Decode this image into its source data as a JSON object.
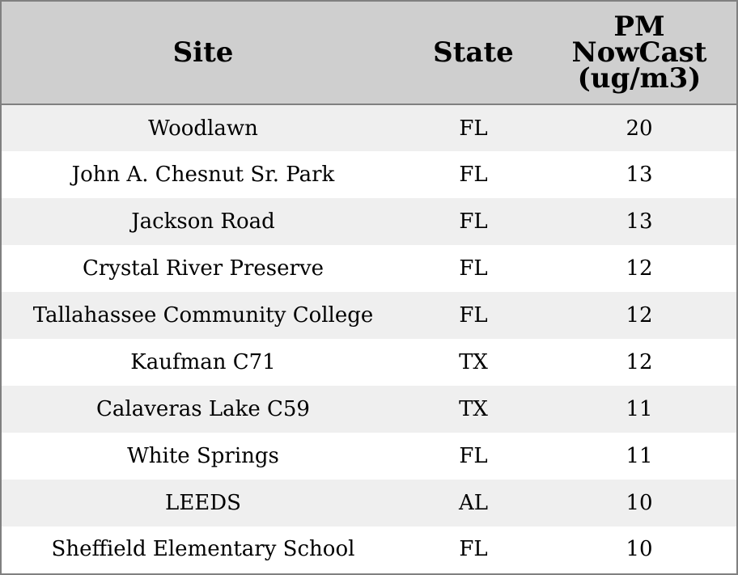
{
  "chart_data": {
    "type": "table",
    "columns": [
      "Site",
      "State",
      "PM NowCast (ug/m3)"
    ],
    "header_lines": {
      "site": [
        "Site"
      ],
      "state": [
        "State"
      ],
      "pm": [
        "PM",
        "NowCast",
        "(ug/m3)"
      ]
    },
    "rows": [
      {
        "site": "Woodlawn",
        "state": "FL",
        "pm": "20"
      },
      {
        "site": "John A. Chesnut Sr. Park",
        "state": "FL",
        "pm": "13"
      },
      {
        "site": "Jackson Road",
        "state": "FL",
        "pm": "13"
      },
      {
        "site": "Crystal River Preserve",
        "state": "FL",
        "pm": "12"
      },
      {
        "site": "Tallahassee Community College",
        "state": "FL",
        "pm": "12"
      },
      {
        "site": "Kaufman C71",
        "state": "TX",
        "pm": "12"
      },
      {
        "site": "Calaveras Lake C59",
        "state": "TX",
        "pm": "11"
      },
      {
        "site": "White Springs",
        "state": "FL",
        "pm": "11"
      },
      {
        "site": "LEEDS",
        "state": "AL",
        "pm": "10"
      },
      {
        "site": "Sheffield Elementary School",
        "state": "FL",
        "pm": "10"
      }
    ],
    "colors": {
      "header_bg": "#cfcfcf",
      "row_alt_bg": "#efefef",
      "row_bg": "#ffffff",
      "border": "#808080"
    }
  }
}
